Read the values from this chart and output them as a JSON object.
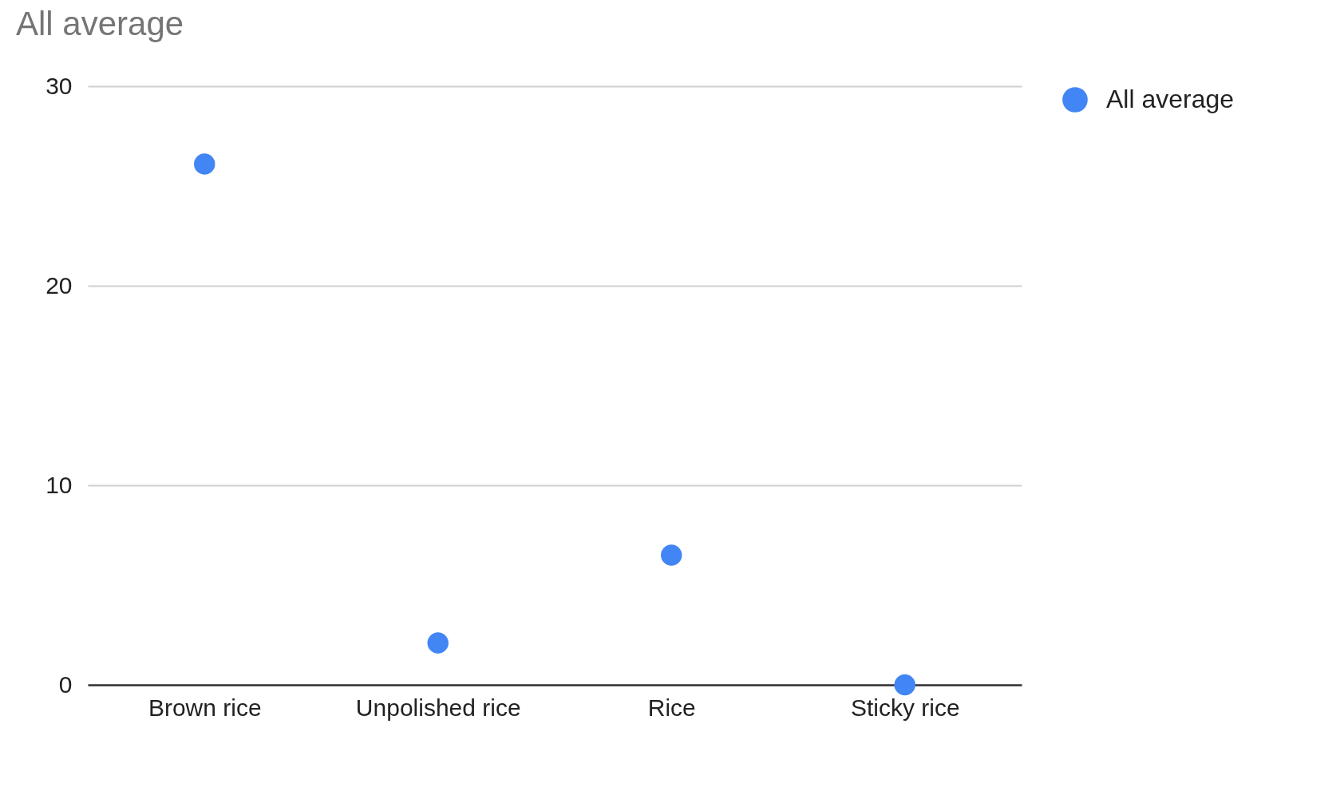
{
  "chart_data": {
    "type": "scatter",
    "title": "All average",
    "categories": [
      "Brown rice",
      "Unpolished rice",
      "Rice",
      "Sticky rice"
    ],
    "series": [
      {
        "name": "All average",
        "color": "#4285f4",
        "values": [
          26.1,
          2.1,
          6.5,
          0
        ]
      }
    ],
    "ylim": [
      0,
      30
    ],
    "yticks": [
      0,
      10,
      20,
      30
    ],
    "grid": "y",
    "legend": "top right",
    "marker": "circle"
  }
}
